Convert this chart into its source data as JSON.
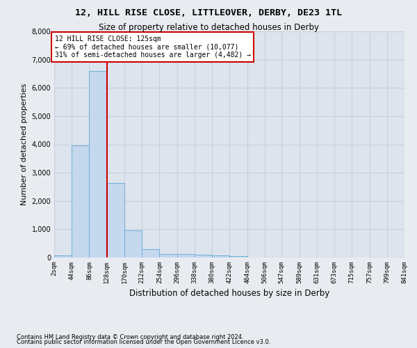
{
  "title": "12, HILL RISE CLOSE, LITTLEOVER, DERBY, DE23 1TL",
  "subtitle": "Size of property relative to detached houses in Derby",
  "xlabel": "Distribution of detached houses by size in Derby",
  "ylabel": "Number of detached properties",
  "footnote1": "Contains HM Land Registry data © Crown copyright and database right 2024.",
  "footnote2": "Contains public sector information licensed under the Open Government Licence v3.0.",
  "annotation_title": "12 HILL RISE CLOSE: 125sqm",
  "annotation_line1": "← 69% of detached houses are smaller (10,077)",
  "annotation_line2": "31% of semi-detached houses are larger (4,482) →",
  "bar_edges": [
    2,
    44,
    86,
    128,
    170,
    212,
    254,
    296,
    338,
    380,
    422,
    464,
    506,
    547,
    589,
    631,
    673,
    715,
    757,
    799,
    841
  ],
  "bar_heights": [
    75,
    3975,
    6600,
    2625,
    950,
    300,
    130,
    125,
    100,
    80,
    55,
    0,
    0,
    0,
    0,
    0,
    0,
    0,
    0,
    0
  ],
  "bar_color": "#c5d8ee",
  "bar_edge_color": "#6baed6",
  "vline_color": "#cc0000",
  "vline_x": 128,
  "background_color": "#e8ecf0",
  "plot_bg_color": "#dde4ed",
  "grid_color": "#c8d0dc",
  "ylim": [
    0,
    8000
  ],
  "yticks": [
    0,
    1000,
    2000,
    3000,
    4000,
    5000,
    6000,
    7000,
    8000
  ],
  "x_tick_labels": [
    "2sqm",
    "44sqm",
    "86sqm",
    "128sqm",
    "170sqm",
    "212sqm",
    "254sqm",
    "296sqm",
    "338sqm",
    "380sqm",
    "422sqm",
    "464sqm",
    "506sqm",
    "547sqm",
    "589sqm",
    "631sqm",
    "673sqm",
    "715sqm",
    "757sqm",
    "799sqm",
    "841sqm"
  ]
}
